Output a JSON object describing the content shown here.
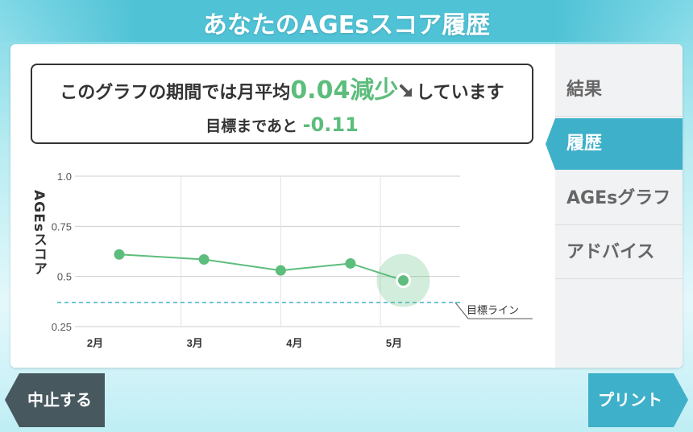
{
  "title": "あなたのAGEsスコア履歴",
  "summary": {
    "line1_prefix": "このグラフの期間では月平均",
    "line1_value": "0.04減少",
    "line1_suffix": "しています",
    "line2_prefix": "目標まであと",
    "line2_value": "-0.11",
    "trend_icon": "arrow-down-right-icon"
  },
  "tabs": {
    "results": "結果",
    "history": "履歴",
    "graph": "AGEsグラフ",
    "advice": "アドバイス",
    "active": "history"
  },
  "buttons": {
    "cancel": "中止する",
    "print": "プリント"
  },
  "colors": {
    "accent_teal": "#3fb0c9",
    "series_green": "#5cbd7c",
    "target_line": "#3fb0c9",
    "dark_button": "#47585f"
  },
  "chart_data": {
    "type": "line",
    "ylabel": "AGEsスコア",
    "y_ticks": [
      "1.0",
      "0.75",
      "0.5",
      "0.25"
    ],
    "ylim": [
      0.25,
      1.0
    ],
    "x_ticks": [
      {
        "label": "2月",
        "x": 1.0
      },
      {
        "label": "3月",
        "x": 2.0
      },
      {
        "label": "4月",
        "x": 3.0
      },
      {
        "label": "5月",
        "x": 4.0
      }
    ],
    "xlim": [
      1.0,
      4.8
    ],
    "series": [
      {
        "points": [
          {
            "x": 1.38,
            "y": 0.61
          },
          {
            "x": 2.23,
            "y": 0.585
          },
          {
            "x": 3.0,
            "y": 0.53
          },
          {
            "x": 3.7,
            "y": 0.565
          },
          {
            "x": 4.23,
            "y": 0.48
          }
        ],
        "highlight_last": true
      }
    ],
    "target_line": {
      "y": 0.37,
      "label": "目標ライン"
    },
    "grid": true
  }
}
